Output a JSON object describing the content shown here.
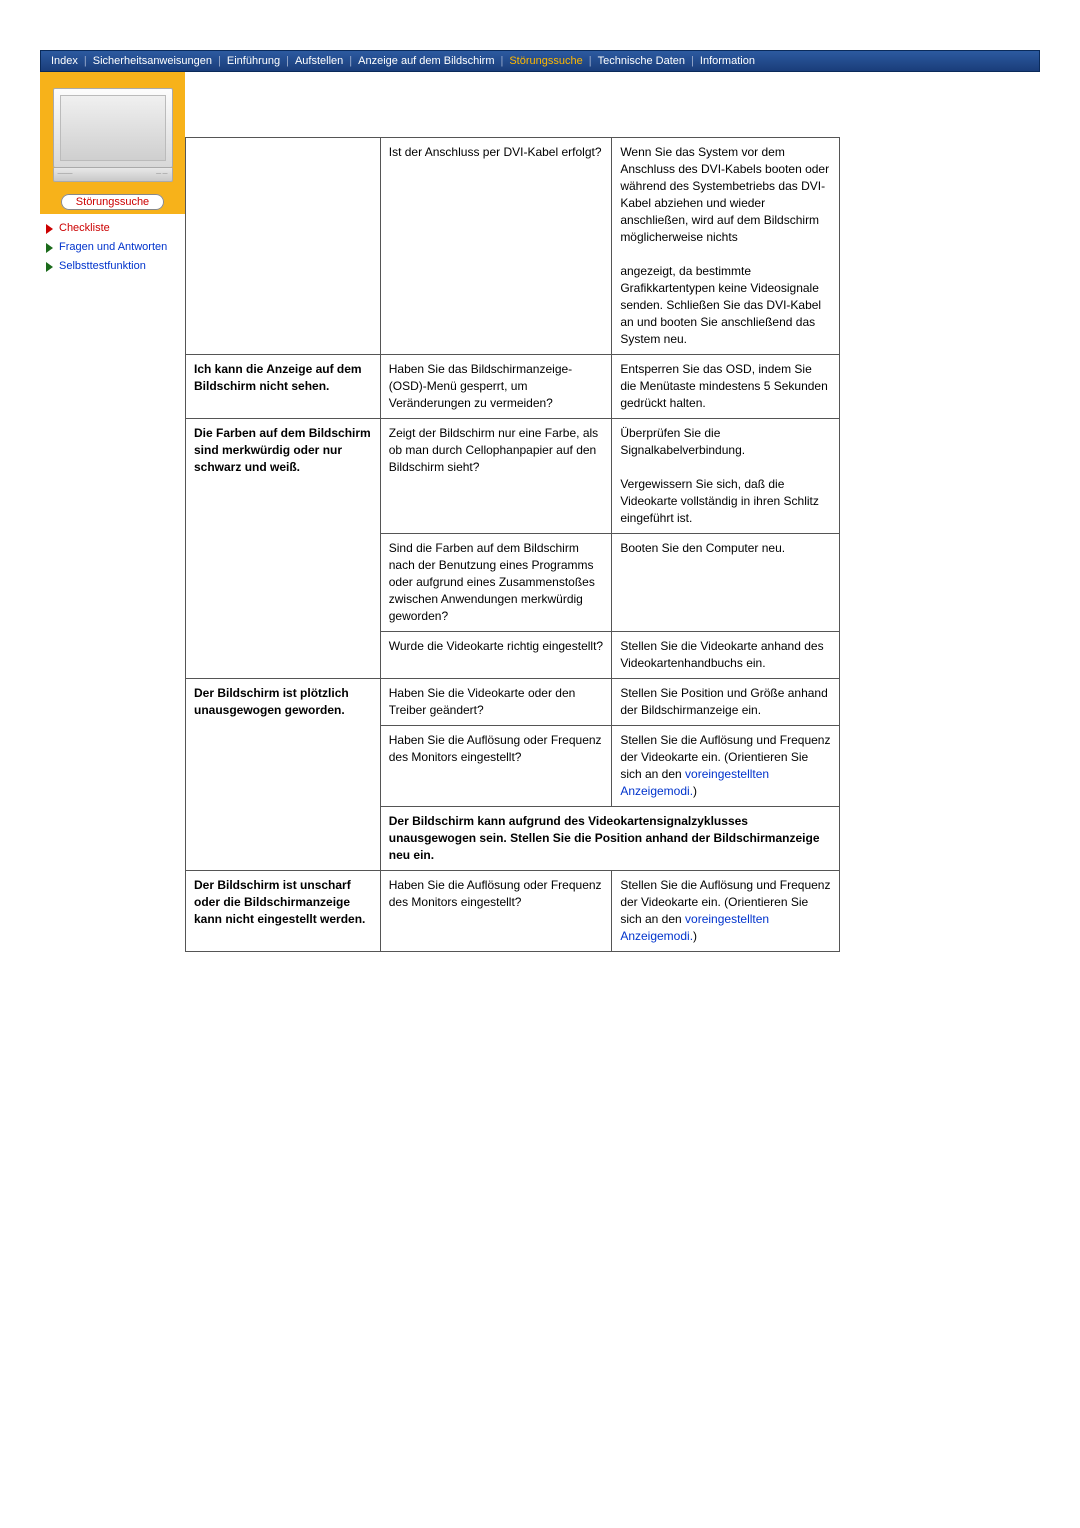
{
  "topnav": {
    "items": [
      {
        "label": "Index"
      },
      {
        "label": "Sicherheitsanweisungen"
      },
      {
        "label": "Einführung"
      },
      {
        "label": "Aufstellen"
      },
      {
        "label": "Anzeige auf dem Bildschirm"
      },
      {
        "label": "Störungssuche",
        "active": true
      },
      {
        "label": "Technische Daten"
      },
      {
        "label": "Information"
      }
    ],
    "separator": "|"
  },
  "sidebar": {
    "title": "Störungssuche",
    "items": [
      {
        "label": "Checkliste",
        "arrow_color": "#cc0000",
        "text_color": "#cc0000"
      },
      {
        "label": "Fragen und Antworten",
        "arrow_color": "#1a6a1a",
        "text_color": "#0033cc"
      },
      {
        "label": "Selbsttestfunktion",
        "arrow_color": "#1a6a1a",
        "text_color": "#0033cc"
      }
    ]
  },
  "table": {
    "rows": [
      {
        "cells": [
          {
            "text": "",
            "rowspan": 1,
            "col": 0
          },
          {
            "text": "Ist der Anschluss per DVI-Kabel erfolgt?",
            "col": 1
          },
          {
            "text": "Wenn Sie das System vor dem Anschluss des DVI-Kabels booten oder während des Systembetriebs das DVI-Kabel abziehen und wieder anschließen, wird auf dem Bildschirm möglicherweise nichts\n\nangezeigt, da bestimmte Grafikkartentypen keine Videosignale senden. Schließen Sie das DVI-Kabel an und booten Sie anschließend das System neu.",
            "col": 2
          }
        ]
      },
      {
        "cells": [
          {
            "text": "Ich kann die Anzeige auf dem Bildschirm nicht sehen.",
            "col": 0
          },
          {
            "text": "Haben Sie das Bildschirmanzeige-(OSD)-Menü gesperrt, um Veränderungen zu vermeiden?",
            "col": 1
          },
          {
            "text": "Entsperren Sie das OSD, indem Sie die Menütaste mindestens 5 Sekunden gedrückt halten.",
            "col": 2
          }
        ]
      },
      {
        "cells": [
          {
            "text": "Die Farben auf dem Bildschirm sind merkwürdig oder nur schwarz und weiß.",
            "rowspan": 3,
            "col": 0
          },
          {
            "text": "Zeigt der Bildschirm nur eine Farbe, als ob man durch Cellophanpapier auf den Bildschirm sieht?",
            "col": 1
          },
          {
            "text": "Überprüfen Sie die Signalkabelverbindung.\n\nVergewissern Sie sich, daß die Videokarte vollständig in ihren Schlitz eingeführt ist.",
            "col": 2
          }
        ]
      },
      {
        "cells": [
          {
            "text": "Sind die Farben auf dem Bildschirm nach der Benutzung eines Programms oder aufgrund eines Zusammenstoßes zwischen Anwendungen merkwürdig geworden?",
            "col": 1
          },
          {
            "text": "Booten Sie den Computer neu.",
            "col": 2
          }
        ]
      },
      {
        "cells": [
          {
            "text": "Wurde die Videokarte richtig eingestellt?",
            "col": 1
          },
          {
            "text": "Stellen Sie die Videokarte anhand des Videokartenhandbuchs ein.",
            "col": 2
          }
        ]
      },
      {
        "cells": [
          {
            "text": "Der Bildschirm ist plötzlich unausgewogen geworden.",
            "rowspan": 3,
            "col": 0
          },
          {
            "text": "Haben Sie die Videokarte oder den Treiber geändert?",
            "col": 1
          },
          {
            "text": "Stellen Sie Position und Größe anhand der Bildschirmanzeige ein.",
            "col": 2
          }
        ]
      },
      {
        "cells": [
          {
            "text": "Haben Sie die Auflösung oder Frequenz des Monitors eingestellt?",
            "col": 1
          },
          {
            "text_parts": [
              "Stellen Sie die Auflösung und Frequenz der Videokarte ein. (Orientieren Sie sich an den ",
              {
                "link": "voreingestellten Anzeigemodi."
              },
              ")"
            ],
            "col": 2
          }
        ]
      },
      {
        "cells": [
          {
            "merged_text": "Der Bildschirm kann aufgrund des Videokartensignalzyklusses unausgewogen sein. Stellen Sie die Position anhand der Bildschirmanzeige neu ein.",
            "colspan": 2,
            "col": 1
          }
        ]
      },
      {
        "cells": [
          {
            "text": "Der Bildschirm ist unscharf oder die Bildschirmanzeige kann nicht eingestellt werden.",
            "col": 0
          },
          {
            "text": "Haben Sie die Auflösung oder Frequenz des Monitors eingestellt?",
            "col": 1
          },
          {
            "text_parts": [
              "Stellen Sie die Auflösung und Frequenz der Videokarte ein. (Orientieren Sie sich an den ",
              {
                "link": "voreingestellten Anzeigemodi."
              },
              ")"
            ],
            "col": 2
          }
        ]
      }
    ]
  }
}
